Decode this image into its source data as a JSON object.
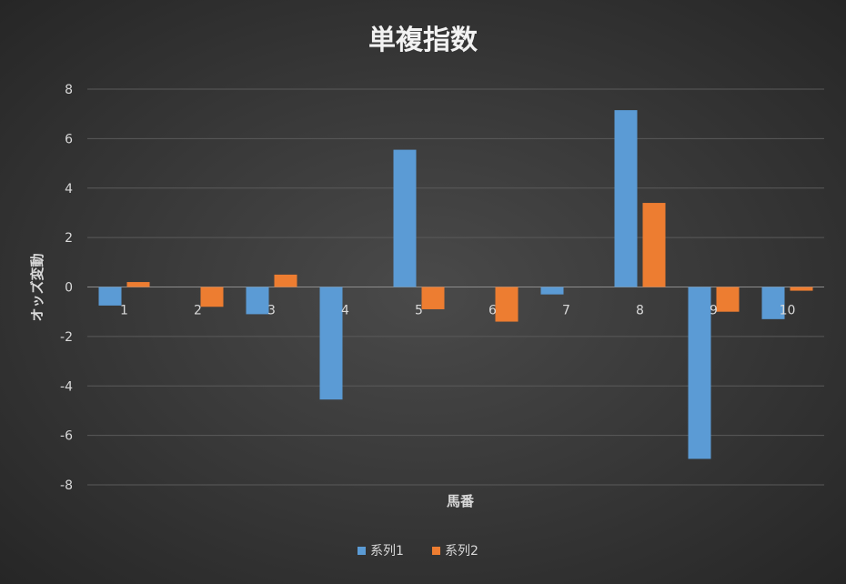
{
  "chart_data": {
    "type": "bar",
    "title": "単複指数",
    "xlabel": "馬番",
    "ylabel": "オッズ変動",
    "categories": [
      "1",
      "2",
      "3",
      "4",
      "5",
      "6",
      "7",
      "8",
      "9",
      "10"
    ],
    "series": [
      {
        "name": "系列1",
        "color": "#5b9bd5",
        "values": [
          -0.75,
          0,
          -1.1,
          -4.55,
          5.55,
          0,
          -0.3,
          7.15,
          -6.95,
          -1.3
        ]
      },
      {
        "name": "系列2",
        "color": "#ed7d31",
        "values": [
          0.2,
          -0.8,
          0.5,
          0,
          -0.9,
          -1.4,
          0,
          3.4,
          -1.0,
          -0.15
        ]
      }
    ],
    "ylim": [
      -8,
      8
    ],
    "yticks": [
      -8,
      -6,
      -4,
      -2,
      0,
      2,
      4,
      6,
      8
    ],
    "grid": true,
    "legend_position": "bottom"
  }
}
